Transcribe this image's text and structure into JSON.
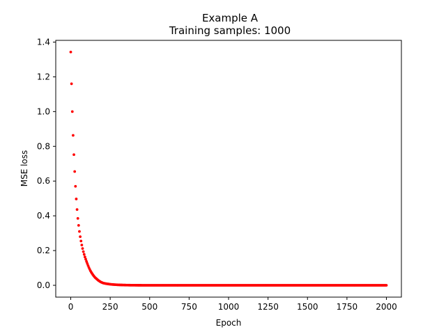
{
  "chart_data": {
    "type": "scatter",
    "title": "Example A",
    "subtitle": "Training samples: 1000",
    "xlabel": "Epoch",
    "ylabel": "MSE loss",
    "xlim": [
      -95,
      2095
    ],
    "ylim": [
      -0.068,
      1.41
    ],
    "xticks": [
      0,
      250,
      500,
      750,
      1000,
      1250,
      1500,
      1750,
      2000
    ],
    "yticks": [
      0.0,
      0.2,
      0.4,
      0.6,
      0.8,
      1.0,
      1.2,
      1.4
    ],
    "ytick_labels": [
      "0.0",
      "0.2",
      "0.4",
      "0.6",
      "0.8",
      "1.0",
      "1.2",
      "1.4"
    ],
    "grid": false,
    "color": "#ff0000",
    "series": [
      {
        "marker": "point",
        "x_start": 0,
        "x_end": 2000,
        "x_step": 5,
        "leading_values": [
          1.343,
          1.16,
          1.0,
          0.863,
          0.752,
          0.655,
          0.57,
          0.497,
          0.436,
          0.385,
          0.345,
          0.31,
          0.28,
          0.255,
          0.232,
          0.212,
          0.194,
          0.178,
          0.163,
          0.15,
          0.137,
          0.125,
          0.113,
          0.102,
          0.092,
          0.083,
          0.075,
          0.068,
          0.061,
          0.055,
          0.049,
          0.044,
          0.04,
          0.036,
          0.032,
          0.028,
          0.025,
          0.022,
          0.019,
          0.017,
          0.015,
          0.013
        ],
        "tail_start": 0.012,
        "tail_end": 0.0,
        "tail_decay_epochs": 60
      }
    ]
  }
}
